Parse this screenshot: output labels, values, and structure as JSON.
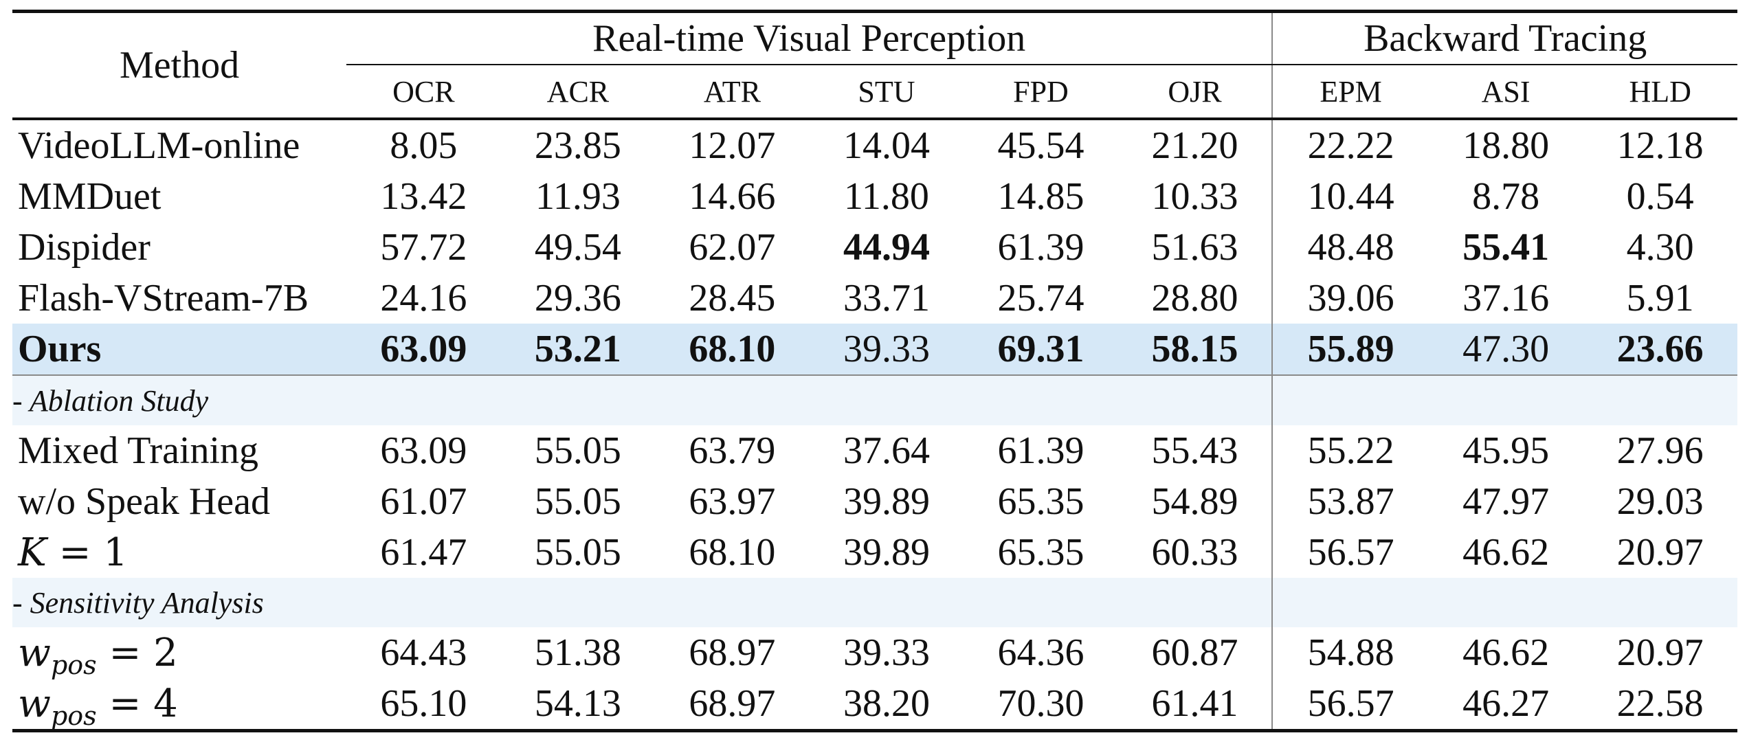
{
  "header": {
    "method": "Method",
    "group_perception": "Real-time Visual Perception",
    "group_tracing": "Backward Tracing",
    "columns": [
      "OCR",
      "ACR",
      "ATR",
      "STU",
      "FPD",
      "OJR",
      "EPM",
      "ASI",
      "HLD"
    ]
  },
  "rows": {
    "videollm": {
      "name": "VideoLLM-online",
      "v": [
        "8.05",
        "23.85",
        "12.07",
        "14.04",
        "45.54",
        "21.20",
        "22.22",
        "18.80",
        "12.18"
      ]
    },
    "mmduet": {
      "name": "MMDuet",
      "v": [
        "13.42",
        "11.93",
        "14.66",
        "11.80",
        "14.85",
        "10.33",
        "10.44",
        "8.78",
        "0.54"
      ]
    },
    "dispider": {
      "name": "Dispider",
      "v": [
        "57.72",
        "49.54",
        "62.07",
        "44.94",
        "61.39",
        "51.63",
        "48.48",
        "55.41",
        "4.30"
      ]
    },
    "flash": {
      "name": "Flash-VStream-7B",
      "v": [
        "24.16",
        "29.36",
        "28.45",
        "33.71",
        "25.74",
        "28.80",
        "39.06",
        "37.16",
        "5.91"
      ]
    },
    "ours": {
      "name": "Ours",
      "v": [
        "63.09",
        "53.21",
        "68.10",
        "39.33",
        "69.31",
        "58.15",
        "55.89",
        "47.30",
        "23.66"
      ]
    },
    "mixed": {
      "name": "Mixed Training",
      "v": [
        "63.09",
        "55.05",
        "63.79",
        "37.64",
        "61.39",
        "55.43",
        "55.22",
        "45.95",
        "27.96"
      ]
    },
    "nospeak": {
      "name": "w/o Speak Head",
      "v": [
        "61.07",
        "55.05",
        "63.97",
        "39.89",
        "65.35",
        "54.89",
        "53.87",
        "47.97",
        "29.03"
      ]
    },
    "k1": {
      "var": "K",
      "eq": " = 1",
      "v": [
        "61.47",
        "55.05",
        "68.10",
        "39.89",
        "65.35",
        "60.33",
        "56.57",
        "46.62",
        "20.97"
      ]
    },
    "wpos2": {
      "var": "w",
      "sub": "pos",
      "eq": " = 2",
      "v": [
        "64.43",
        "51.38",
        "68.97",
        "39.33",
        "64.36",
        "60.87",
        "54.88",
        "46.62",
        "20.97"
      ]
    },
    "wpos4": {
      "var": "w",
      "sub": "pos",
      "eq": " = 4",
      "v": [
        "65.10",
        "54.13",
        "68.97",
        "38.20",
        "70.30",
        "61.41",
        "56.57",
        "46.27",
        "22.58"
      ]
    }
  },
  "sections": {
    "ablation": "- Ablation Study",
    "sensitivity": "- Sensitivity Analysis"
  }
}
